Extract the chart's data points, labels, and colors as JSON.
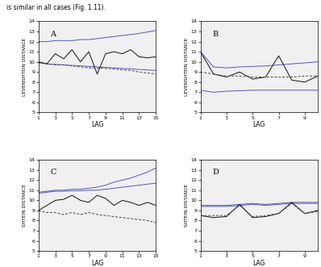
{
  "header": "is similar in all cases (Fig. 1.11).",
  "panels": [
    "A",
    "B",
    "C",
    "D"
  ],
  "ylabel_top": "LEVENSHTEIN DISTANCE",
  "ylabel_bottom": "SHTEIN DISTANCE",
  "xlabel": "LAG",
  "ylim": [
    5,
    14
  ],
  "yticks": [
    5,
    6,
    7,
    8,
    9,
    10,
    11,
    12,
    13,
    14
  ],
  "A": {
    "xlim": [
      1,
      15
    ],
    "xtick_vals": [
      1,
      3,
      5,
      7,
      9,
      11,
      13,
      15
    ],
    "x": [
      1,
      2,
      3,
      4,
      5,
      6,
      7,
      8,
      9,
      10,
      11,
      12,
      13,
      14,
      15
    ],
    "upper_blue": [
      12.0,
      12.0,
      12.1,
      12.1,
      12.1,
      12.2,
      12.2,
      12.3,
      12.4,
      12.5,
      12.6,
      12.7,
      12.8,
      12.95,
      13.1
    ],
    "lower_blue": [
      9.9,
      9.8,
      9.75,
      9.7,
      9.65,
      9.6,
      9.55,
      9.5,
      9.45,
      9.4,
      9.35,
      9.3,
      9.25,
      9.2,
      9.15
    ],
    "black": [
      10.0,
      9.8,
      10.8,
      10.3,
      11.2,
      10.0,
      11.0,
      8.8,
      10.8,
      11.0,
      10.8,
      11.2,
      10.5,
      10.4,
      10.5
    ],
    "dashed": [
      10.0,
      9.8,
      9.7,
      9.7,
      9.6,
      9.5,
      9.4,
      9.4,
      9.35,
      9.3,
      9.2,
      9.15,
      9.0,
      8.9,
      8.8
    ]
  },
  "B": {
    "xlim": [
      1,
      10
    ],
    "xtick_vals": [
      1,
      3,
      5,
      7,
      9
    ],
    "x": [
      1,
      2,
      3,
      4,
      5,
      6,
      7,
      8,
      9,
      10
    ],
    "upper_blue": [
      11.0,
      9.5,
      9.4,
      9.5,
      9.55,
      9.6,
      9.7,
      9.8,
      9.9,
      10.0
    ],
    "lower_blue": [
      7.2,
      7.0,
      7.1,
      7.15,
      7.2,
      7.2,
      7.2,
      7.2,
      7.2,
      7.2
    ],
    "black": [
      11.0,
      8.8,
      8.5,
      9.0,
      8.3,
      8.5,
      10.6,
      8.2,
      8.0,
      8.6
    ],
    "dashed": [
      9.0,
      8.8,
      8.6,
      8.6,
      8.5,
      8.5,
      8.5,
      8.5,
      8.6,
      8.6
    ]
  },
  "C": {
    "xlim": [
      1,
      15
    ],
    "xtick_vals": [
      1,
      3,
      5,
      7,
      9,
      11,
      13,
      15
    ],
    "x": [
      1,
      2,
      3,
      4,
      5,
      6,
      7,
      8,
      9,
      10,
      11,
      12,
      13,
      14,
      15
    ],
    "upper_blue": [
      10.8,
      10.9,
      11.0,
      11.0,
      11.1,
      11.1,
      11.2,
      11.3,
      11.5,
      11.8,
      12.0,
      12.2,
      12.5,
      12.8,
      13.2
    ],
    "lower_blue": [
      10.7,
      10.8,
      10.9,
      10.9,
      10.95,
      10.95,
      11.0,
      11.0,
      11.1,
      11.2,
      11.3,
      11.4,
      11.5,
      11.6,
      11.7
    ],
    "black": [
      9.0,
      9.5,
      10.0,
      10.1,
      10.5,
      10.0,
      9.8,
      10.5,
      10.2,
      9.5,
      10.0,
      9.8,
      9.5,
      9.8,
      9.5
    ],
    "dashed": [
      9.0,
      8.8,
      8.8,
      8.6,
      8.8,
      8.6,
      8.8,
      8.6,
      8.5,
      8.4,
      8.3,
      8.2,
      8.1,
      8.0,
      7.8
    ]
  },
  "D": {
    "xlim": [
      1,
      10
    ],
    "xtick_vals": [
      1,
      3,
      5,
      7,
      9
    ],
    "x": [
      1,
      2,
      3,
      4,
      5,
      6,
      7,
      8,
      9,
      10
    ],
    "upper_blue": [
      9.5,
      9.5,
      9.5,
      9.6,
      9.7,
      9.6,
      9.7,
      9.8,
      9.8,
      9.8
    ],
    "lower_blue": [
      9.4,
      9.4,
      9.4,
      9.5,
      9.6,
      9.5,
      9.6,
      9.7,
      9.7,
      9.7
    ],
    "black": [
      8.5,
      8.3,
      8.4,
      9.6,
      8.3,
      8.4,
      8.7,
      9.8,
      8.7,
      9.0
    ],
    "dashed": [
      8.5,
      8.5,
      8.5,
      9.5,
      8.4,
      8.5,
      8.7,
      9.7,
      8.7,
      8.9
    ]
  },
  "blue_color": "#5555bb",
  "black_color": "#111111",
  "dashed_color": "#444444",
  "bg_color": "#f0f0f0"
}
